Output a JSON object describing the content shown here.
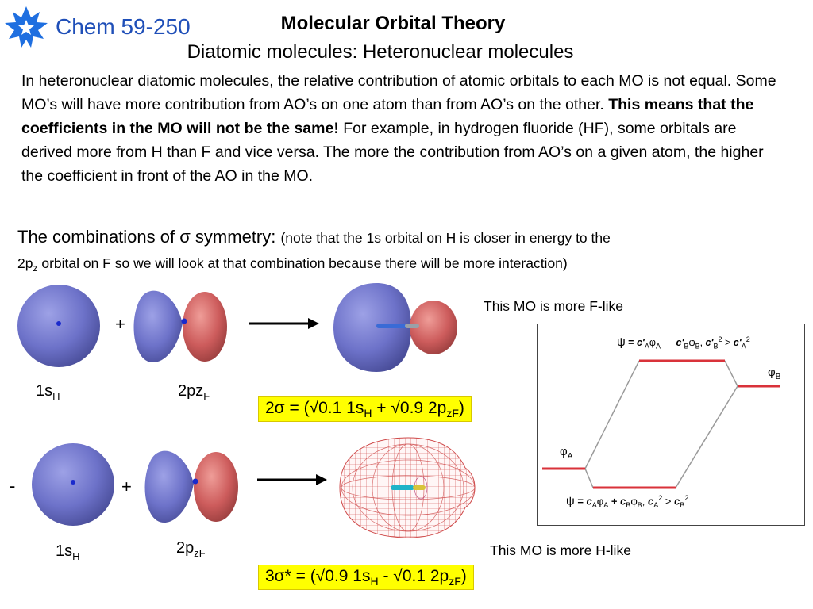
{
  "header": {
    "course": "Chem 59-250",
    "title": "Molecular Orbital Theory",
    "subtitle": "Diatomic molecules: Heteronuclear molecules"
  },
  "intro": {
    "p1": "In heteronuclear diatomic molecules, the relative contribution of atomic orbitals to each MO is not equal.  Some MO’s will have more contribution from AO’s on one atom than from AO’s on the other.  ",
    "bold": "This means that the coefficients in the MO will not be the same!",
    "p2": "  For example, in hydrogen fluoride (HF), some orbitals are derived more from H than F and vice versa.  The more the contribution from AO’s on a given atom, the higher the coefficient in front of the AO in the MO."
  },
  "combinations": {
    "lead_pre": "The combinations of ",
    "sigma": "σ",
    "lead_post": " symmetry: ",
    "note_a": "(note that the 1s orbital on H is closer in energy to the",
    "note_b1": "2p",
    "note_b_sub": "z",
    "note_b2": " orbital on F so we will look at that combination because there will be more interaction)"
  },
  "row1": {
    "plus": "+",
    "label_1s": "1s",
    "label_1s_sub": "H",
    "label_2p": "2pz",
    "label_2p_sub": "F",
    "eq": {
      "a": "2σ = (",
      "root1": "√",
      "b": "0.1 1s",
      "sub1": "H",
      "c": " + ",
      "root2": "√",
      "d": "0.9 2p",
      "sub2": "zF",
      "e": ")"
    }
  },
  "row2": {
    "minus": "-",
    "plus": "+",
    "label_1s": "1s",
    "label_1s_sub": "H",
    "label_2p": "2p",
    "label_2p_sub": "zF",
    "eq": {
      "a": "3σ* = (",
      "root1": "√",
      "b": "0.9 1s",
      "sub1": "H",
      "c": " - ",
      "root2": "√",
      "d": "0.1 2p",
      "sub2": "zF",
      "e": ")"
    }
  },
  "mo_diagram": {
    "note_top": "This MO is more F-like",
    "note_bottom": "This MO is more H-like",
    "upper_eq": {
      "psi": "ψ",
      "eq": " = ",
      "c1": "c′",
      "sa": "A",
      "phi1": "φ",
      "sa2": "A",
      "minus": " — ",
      "c2": "c′",
      "sb": "B",
      "phi2": "φ",
      "sb2": "B",
      "comma": ",  ",
      "c3": "c′",
      "sb3": "B",
      "sq1": "2",
      "gt": " > ",
      "c4": "c′",
      "sa4": "A",
      "sq2": "2"
    },
    "lower_eq": {
      "psi": "ψ",
      "eq": " = ",
      "c1": "c",
      "sa": "A",
      "phi1": "φ",
      "sa2": "A",
      "plus": " + ",
      "c2": "c",
      "sb": "B",
      "phi2": "φ",
      "sb2": "B",
      "comma": ",  ",
      "c3": "c",
      "sa3": "A",
      "sq1": "2",
      "gt": "  > ",
      "c4": "c",
      "sb4": "B",
      "sq2": "2"
    },
    "phi_a": "φ",
    "phi_a_sub": "A",
    "phi_b": "φ",
    "phi_b_sub": "B",
    "level_color": "#d9323a",
    "connector_color": "#9a9a9a"
  },
  "colors": {
    "orbital_blue": "#6d72c9",
    "orbital_red": "#cd5c5c",
    "highlight": "#ffff00",
    "logo_blue": "#1f6fe0",
    "course_blue": "#1f4fb8"
  }
}
